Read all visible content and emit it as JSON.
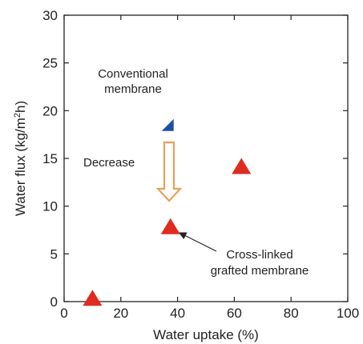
{
  "chart_data": {
    "type": "scatter",
    "xlabel": "Water uptake (%)",
    "ylabel_parts": [
      "Water flux (kg/m",
      "2",
      "h)"
    ],
    "xlim": [
      0,
      100
    ],
    "ylim": [
      0,
      30
    ],
    "x_ticks": [
      0,
      20,
      40,
      60,
      80,
      100
    ],
    "y_ticks": [
      0,
      5,
      10,
      15,
      20,
      25,
      30
    ],
    "grid": false,
    "legend": "none",
    "points": [
      {
        "x": 36.5,
        "y": 18.5,
        "marker": "half-triangle",
        "color": "#1f4fa3"
      },
      {
        "x": 37.5,
        "y": 7.9,
        "marker": "triangle",
        "color": "#e02b20"
      },
      {
        "x": 62.5,
        "y": 14.2,
        "marker": "triangle",
        "color": "#e02b20"
      },
      {
        "x": 10,
        "y": 0.4,
        "marker": "triangle",
        "color": "#e02b20"
      }
    ],
    "annotations": {
      "conventional": [
        "Conventional",
        "membrane"
      ],
      "crosslinked": [
        "Cross-linked",
        "grafted membrane"
      ],
      "decrease": "Decrease"
    },
    "colors": {
      "red": "#e02b20",
      "blue": "#1f4fa3",
      "arrow": "#e8a15a",
      "axis": "#222222"
    }
  }
}
